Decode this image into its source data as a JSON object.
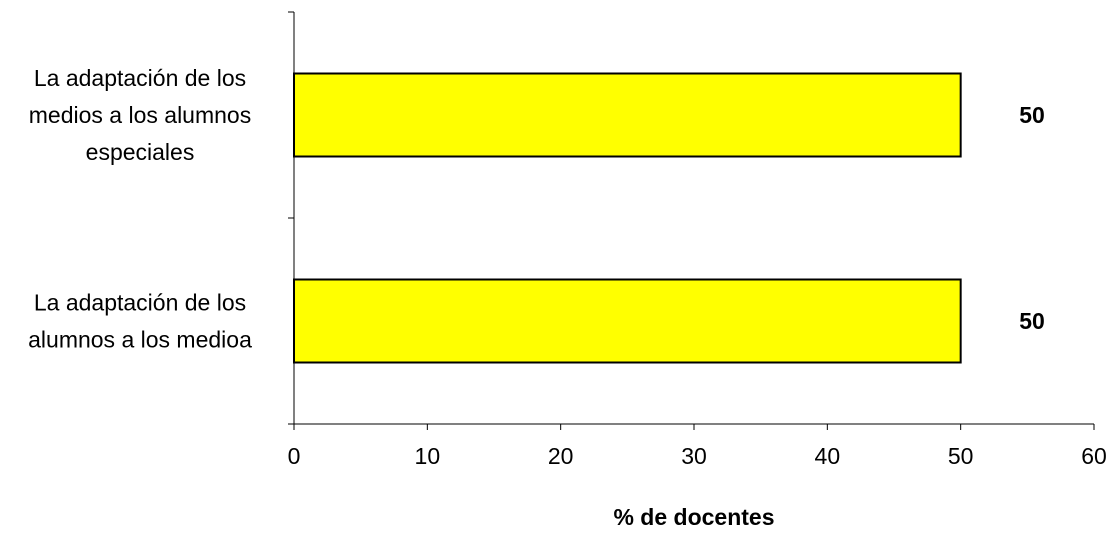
{
  "chart_data": {
    "type": "bar",
    "orientation": "horizontal",
    "categories": [
      [
        "La adaptación de los",
        "medios a los alumnos",
        "especiales"
      ],
      [
        "La adaptación de los",
        "alumnos a los medioa"
      ]
    ],
    "values": [
      50,
      50
    ],
    "data_labels": [
      "50",
      "50"
    ],
    "xlabel": "% de docentes",
    "xlim": [
      0,
      60
    ],
    "xticks": [
      "0",
      "10",
      "20",
      "30",
      "40",
      "50",
      "60"
    ],
    "bar_color": "#ffff00",
    "bar_edge_color": "#000000",
    "grid": false,
    "legend": "none"
  }
}
